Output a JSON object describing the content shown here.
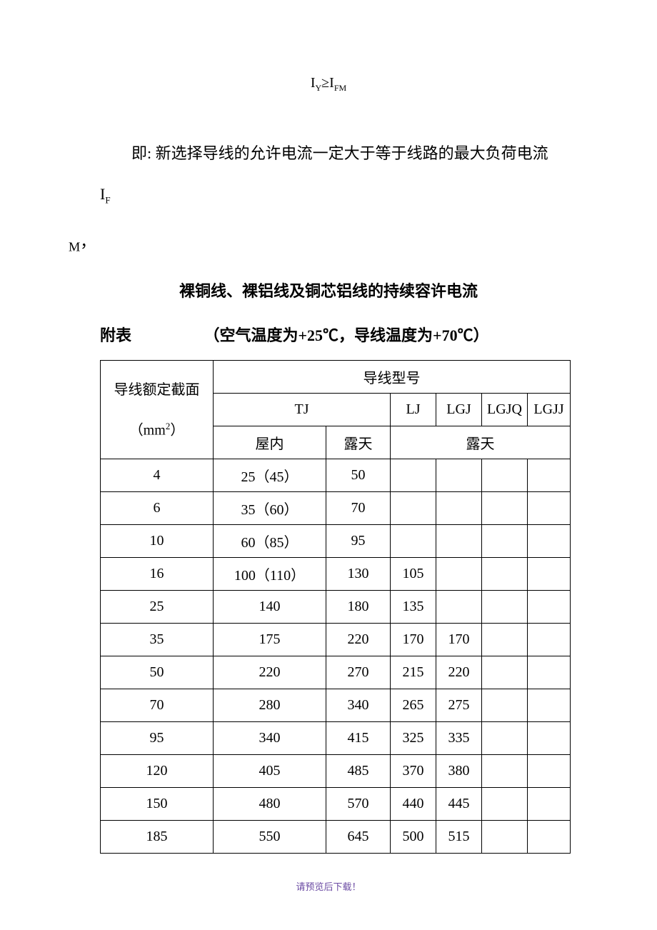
{
  "formula": {
    "html": "I<sub>Y</sub>≥I<sub>FM</sub>"
  },
  "paragraph": {
    "line1_html": "即: 新选择导线的允许电流一定大于等于线路的最大负荷电流 <span class=\"latin\">I<sub>F</sub></span>",
    "line2_html": "<sub>M</sub>，"
  },
  "title": "裸铜线、裸铝线及铜芯铝线的持续容许电流",
  "subtitle": {
    "label": "附表",
    "condition": "（空气温度为+25℃，导线温度为+70℃）"
  },
  "table": {
    "header": {
      "section_html": "导线额定截面<br><br>（mm<sup>2</sup>）",
      "model": "导线型号",
      "tj": "TJ",
      "lj": "LJ",
      "lgj": "LGJ",
      "lgjq": "LGJQ",
      "lgjj": "LGJJ",
      "indoor": "屋内",
      "outdoor": "露天",
      "outdoor2": "露天"
    },
    "rows": [
      {
        "section": "4",
        "indoor": "25（45）",
        "outdoor": "50",
        "lj": "",
        "lgj": "",
        "lgjq": "",
        "lgjj": ""
      },
      {
        "section": "6",
        "indoor": "35（60）",
        "outdoor": "70",
        "lj": "",
        "lgj": "",
        "lgjq": "",
        "lgjj": ""
      },
      {
        "section": "10",
        "indoor": "60（85）",
        "outdoor": "95",
        "lj": "",
        "lgj": "",
        "lgjq": "",
        "lgjj": ""
      },
      {
        "section": "16",
        "indoor": "100（110）",
        "outdoor": "130",
        "lj": "105",
        "lgj": "",
        "lgjq": "",
        "lgjj": ""
      },
      {
        "section": "25",
        "indoor": "140",
        "outdoor": "180",
        "lj": "135",
        "lgj": "",
        "lgjq": "",
        "lgjj": ""
      },
      {
        "section": "35",
        "indoor": "175",
        "outdoor": "220",
        "lj": "170",
        "lgj": "170",
        "lgjq": "",
        "lgjj": ""
      },
      {
        "section": "50",
        "indoor": "220",
        "outdoor": "270",
        "lj": "215",
        "lgj": "220",
        "lgjq": "",
        "lgjj": ""
      },
      {
        "section": "70",
        "indoor": "280",
        "outdoor": "340",
        "lj": "265",
        "lgj": "275",
        "lgjq": "",
        "lgjj": ""
      },
      {
        "section": "95",
        "indoor": "340",
        "outdoor": "415",
        "lj": "325",
        "lgj": "335",
        "lgjq": "",
        "lgjj": ""
      },
      {
        "section": "120",
        "indoor": "405",
        "outdoor": "485",
        "lj": "370",
        "lgj": "380",
        "lgjq": "",
        "lgjj": ""
      },
      {
        "section": "150",
        "indoor": "480",
        "outdoor": "570",
        "lj": "440",
        "lgj": "445",
        "lgjq": "",
        "lgjj": ""
      },
      {
        "section": "185",
        "indoor": "550",
        "outdoor": "645",
        "lj": "500",
        "lgj": "515",
        "lgjq": "",
        "lgjj": ""
      }
    ]
  },
  "footer": "请预览后下载！",
  "colors": {
    "text": "#000000",
    "background": "#ffffff",
    "footer": "#6b4ba3",
    "border": "#000000"
  }
}
